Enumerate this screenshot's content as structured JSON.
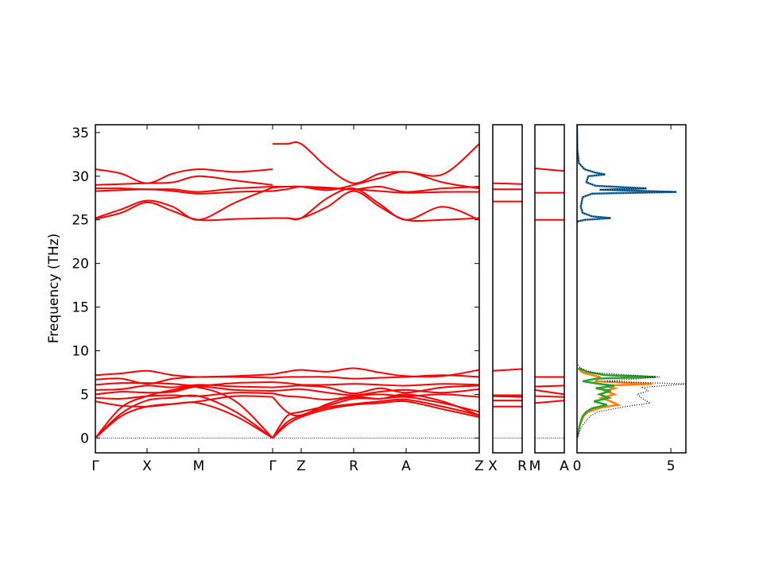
{
  "chart_data": [
    {
      "type": "line",
      "ylabel": "Frequency (THz)",
      "color": "#ff0000",
      "xlim": [
        0,
        4.83
      ],
      "ylim": [
        -1.7,
        35.9
      ],
      "yticks": [
        0,
        5,
        10,
        15,
        20,
        25,
        30,
        35
      ],
      "xticks": [
        {
          "value": 0,
          "label": "Γ"
        },
        {
          "value": 0.65,
          "label": "X"
        },
        {
          "value": 1.3,
          "label": "M"
        },
        {
          "value": 2.23,
          "label": "Γ"
        },
        {
          "value": 2.59,
          "label": "Z"
        },
        {
          "value": 3.25,
          "label": "R"
        },
        {
          "value": 3.91,
          "label": "A"
        },
        {
          "value": 4.83,
          "label": "Z"
        }
      ],
      "hline": 0,
      "hline_color": "#0000ff",
      "segments": [
        {
          "x": [
            0,
            0.325,
            0.65,
            0.975,
            1.3,
            1.765,
            2.23
          ],
          "series": [
            {
              "values": [
                0,
                2.5,
                3.6,
                3.9,
                4.0,
                2.5,
                0
              ]
            },
            {
              "values": [
                0,
                2.8,
                4.3,
                4.6,
                4.8,
                3.0,
                0
              ]
            },
            {
              "values": [
                0,
                3.5,
                4.8,
                5.5,
                5.8,
                4.2,
                0
              ]
            },
            {
              "values": [
                4.2,
                3.7,
                3.6,
                3.9,
                4.2,
                4.8,
                4.7
              ]
            },
            {
              "values": [
                4.6,
                4.5,
                4.8,
                4.9,
                4.8,
                5.2,
                5.1
              ]
            },
            {
              "values": [
                5.0,
                5.3,
                5.2,
                5.3,
                5.9,
                5.5,
                5.4
              ]
            },
            {
              "values": [
                5.5,
                5.6,
                6.0,
                5.8,
                6.1,
                5.9,
                5.8
              ]
            },
            {
              "values": [
                6.1,
                6.3,
                6.3,
                6.2,
                6.0,
                6.3,
                6.4
              ]
            },
            {
              "values": [
                6.7,
                6.8,
                6.2,
                6.8,
                7.0,
                7.0,
                6.9
              ]
            },
            {
              "values": [
                7.2,
                7.4,
                7.7,
                7.2,
                7.0,
                7.1,
                7.3
              ]
            },
            {
              "values": [
                25.1,
                25.8,
                27.0,
                26.0,
                25.0,
                25.1,
                25.2
              ]
            },
            {
              "values": [
                25.2,
                26.2,
                27.2,
                26.5,
                25.0,
                27.0,
                28.7
              ]
            },
            {
              "values": [
                28.3,
                28.4,
                28.5,
                28.3,
                28.0,
                28.2,
                28.3
              ]
            },
            {
              "values": [
                28.6,
                28.6,
                28.5,
                28.5,
                28.2,
                28.6,
                28.8
              ]
            },
            {
              "values": [
                29.0,
                29.1,
                29.2,
                29.3,
                30.0,
                29.5,
                29.0
              ]
            },
            {
              "values": [
                30.8,
                30.3,
                29.2,
                30.3,
                30.8,
                30.5,
                30.8
              ]
            }
          ]
        },
        {
          "x": [
            2.23,
            2.41,
            2.59,
            2.92,
            3.25,
            3.58,
            3.91,
            4.37,
            4.83
          ],
          "series": [
            {
              "values": [
                0,
                1.5,
                2.4,
                3.3,
                3.8,
                4.0,
                4.2,
                3.3,
                2.4
              ]
            },
            {
              "values": [
                0,
                1.8,
                2.6,
                3.5,
                3.9,
                4.2,
                4.4,
                3.6,
                2.6
              ]
            },
            {
              "values": [
                0,
                2.5,
                3.0,
                3.7,
                4.5,
                4.5,
                4.7,
                4.0,
                3.0
              ]
            },
            {
              "values": [
                4.7,
                3.0,
                2.6,
                3.9,
                4.7,
                4.5,
                5.0,
                4.2,
                2.6
              ]
            },
            {
              "values": [
                5.1,
                4.8,
                4.7,
                4.4,
                4.8,
                5.0,
                4.8,
                5.0,
                4.7
              ]
            },
            {
              "values": [
                5.4,
                5.5,
                5.6,
                5.2,
                4.9,
                5.3,
                5.5,
                5.2,
                5.6
              ]
            },
            {
              "values": [
                5.8,
                5.9,
                6.0,
                5.8,
                5.1,
                5.7,
                5.2,
                5.8,
                6.0
              ]
            },
            {
              "values": [
                6.4,
                6.3,
                6.1,
                6.1,
                6.2,
                6.1,
                6.0,
                6.2,
                6.1
              ]
            },
            {
              "values": [
                6.9,
                7.0,
                7.0,
                7.0,
                6.8,
                6.9,
                7.0,
                7.2,
                7.0
              ]
            },
            {
              "values": [
                7.3,
                7.6,
                7.8,
                7.6,
                8.0,
                7.5,
                7.1,
                7.1,
                7.8
              ]
            },
            {
              "values": [
                25.2,
                25.2,
                25.2,
                26.5,
                28.3,
                26.5,
                25.0,
                25.0,
                25.2
              ]
            },
            {
              "values": [
                25.2,
                25.2,
                25.2,
                27.5,
                28.6,
                26.8,
                25.0,
                26.5,
                25.0
              ]
            },
            {
              "values": [
                28.3,
                28.5,
                28.8,
                28.6,
                28.5,
                28.3,
                28.1,
                28.2,
                28.2
              ]
            },
            {
              "values": [
                28.8,
                28.8,
                28.8,
                28.7,
                28.5,
                28.8,
                28.2,
                28.6,
                28.8
              ]
            },
            {
              "values": [
                33.7,
                33.7,
                33.7,
                31.0,
                29.2,
                30.3,
                30.5,
                30.2,
                33.7
              ]
            },
            {
              "values": [
                28.7,
                28.8,
                28.8,
                28.4,
                29.0,
                29.8,
                30.5,
                29.3,
                28.6
              ]
            }
          ]
        }
      ]
    },
    {
      "type": "line",
      "color": "#ff0000",
      "xlim": [
        0,
        0.37
      ],
      "ylim": [
        -1.7,
        35.9
      ],
      "xticks": [
        {
          "value": 0,
          "label": "X"
        },
        {
          "value": 0.37,
          "label": "R"
        }
      ],
      "hline": 0,
      "hline_color": "#0000ff",
      "segments": [
        {
          "x": [
            0,
            0.37
          ],
          "series": [
            {
              "values": [
                3.6,
                3.6
              ]
            },
            {
              "values": [
                4.3,
                4.3
              ]
            },
            {
              "values": [
                4.8,
                4.7
              ]
            },
            {
              "values": [
                4.9,
                4.9
              ]
            },
            {
              "values": [
                7.7,
                7.9
              ]
            },
            {
              "values": [
                27.1,
                27.1
              ]
            },
            {
              "values": [
                28.5,
                28.5
              ]
            },
            {
              "values": [
                29.2,
                29.1
              ]
            }
          ]
        }
      ]
    },
    {
      "type": "line",
      "color": "#ff0000",
      "xlim": [
        0,
        0.37
      ],
      "ylim": [
        -1.7,
        35.9
      ],
      "xticks": [
        {
          "value": 0,
          "label": "M"
        },
        {
          "value": 0.37,
          "label": "A"
        }
      ],
      "hline": 0,
      "hline_color": "#0000ff",
      "segments": [
        {
          "x": [
            0,
            0.37
          ],
          "series": [
            {
              "values": [
                4.0,
                4.3
              ]
            },
            {
              "values": [
                4.8,
                4.7
              ]
            },
            {
              "values": [
                5.5,
                5.0
              ]
            },
            {
              "values": [
                5.9,
                6.0
              ]
            },
            {
              "values": [
                7.0,
                7.0
              ]
            },
            {
              "values": [
                25.0,
                25.0
              ]
            },
            {
              "values": [
                28.1,
                28.1
              ]
            },
            {
              "values": [
                30.9,
                30.6
              ]
            }
          ]
        }
      ]
    },
    {
      "type": "dos",
      "xlim": [
        0,
        5.8
      ],
      "ylim": [
        -1.7,
        35.9
      ],
      "xticks": [
        0,
        5
      ],
      "series": [
        {
          "color": "#1f77b4",
          "style": "solid",
          "x": [
            0,
            0.02,
            0.1,
            0.4,
            1.0,
            1.5,
            0.6,
            0.5,
            1.0,
            3.7,
            1.2,
            5.3,
            0.8,
            0.3,
            0.2,
            0.3,
            0.8,
            1.8,
            0.4,
            0
          ],
          "y": [
            35.9,
            33,
            31.5,
            30.8,
            30.4,
            30.2,
            30.0,
            29.3,
            28.9,
            28.6,
            28.45,
            28.2,
            28.0,
            27.6,
            26.5,
            25.8,
            25.4,
            25.2,
            25.0,
            24.8
          ]
        },
        {
          "color": "#ff7f0e",
          "style": "solid",
          "x": [
            0.05,
            0.3,
            1.2,
            1.0,
            4.0,
            1.5,
            2.0,
            1.5,
            2.0,
            1.3,
            1.8,
            2.2,
            1.3,
            0.6,
            0.35,
            0.15,
            0
          ],
          "y": [
            8,
            7.5,
            7,
            6.5,
            6.2,
            6.0,
            5.7,
            5.4,
            5.0,
            4.6,
            4.2,
            3.8,
            3.5,
            3.0,
            2.5,
            1.5,
            0
          ]
        },
        {
          "color": "#2ca02c",
          "style": "solid",
          "x": [
            0.1,
            0.5,
            1.5,
            4.2,
            1.0,
            0.3,
            1.2,
            2.0,
            1.0,
            1.8,
            1.2,
            1.7,
            0.9,
            1.6,
            0.8,
            0.5,
            0.3,
            0.15,
            0
          ],
          "y": [
            8,
            7.6,
            7.2,
            7.0,
            6.8,
            6.5,
            6.2,
            6.0,
            5.7,
            5.4,
            5.0,
            4.6,
            4.2,
            3.8,
            3.4,
            3.0,
            2.5,
            1.5,
            0
          ]
        },
        {
          "color": "#000000",
          "style": "dotted",
          "x": [
            0,
            0.02,
            0.1,
            0.4,
            1.0,
            1.5,
            0.6,
            0.5,
            1.0,
            3.7,
            1.2,
            5.3,
            0.8,
            0.3,
            0.2,
            0.3,
            0.8,
            1.8,
            0.4,
            0,
            0,
            0.2,
            0.8,
            4.4,
            1.5,
            5.8,
            3.5,
            3.8,
            3.2,
            3.5,
            3.9,
            2.6,
            1.1,
            0.7,
            0.3,
            0
          ],
          "y": [
            35.9,
            33,
            31.5,
            30.8,
            30.4,
            30.2,
            30.0,
            29.3,
            28.9,
            28.6,
            28.45,
            28.2,
            28.0,
            27.6,
            26.5,
            25.8,
            25.4,
            25.2,
            25.0,
            24.8,
            8.5,
            8,
            7.5,
            7,
            6.5,
            6.2,
            5.8,
            5.4,
            5.0,
            4.5,
            4.0,
            3.6,
            3.0,
            2.5,
            1.5,
            0
          ]
        }
      ]
    }
  ]
}
